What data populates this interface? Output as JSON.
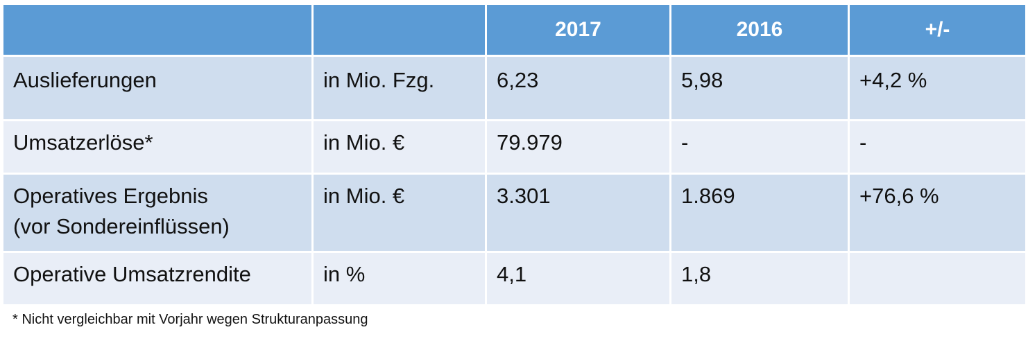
{
  "table": {
    "headers": [
      "",
      "",
      "2017",
      "2016",
      "+/-"
    ],
    "rows": [
      {
        "label_lines": [
          "Auslieferungen"
        ],
        "unit": "in Mio. Fzg.",
        "v2017": "6,23",
        "v2016": "5,98",
        "change": "+4,2 %"
      },
      {
        "label_lines": [
          "Umsatzerlöse*"
        ],
        "unit": "in Mio. €",
        "v2017": "79.979",
        "v2016": "-",
        "change": "-"
      },
      {
        "label_lines": [
          "Operatives Ergebnis",
          "(vor Sondereinflüssen)"
        ],
        "unit": "in Mio. €",
        "v2017": "3.301",
        "v2016": "1.869",
        "change": "+76,6 %"
      },
      {
        "label_lines": [
          "Operative Umsatzrendite"
        ],
        "unit": "in %",
        "v2017": "4,1",
        "v2016": "1,8",
        "change": ""
      }
    ]
  },
  "footnote": "* Nicht vergleichbar mit Vorjahr wegen Strukturanpassung",
  "colors": {
    "header_bg": "#5b9bd5",
    "row_dark": "#cfddee",
    "row_light": "#e9eef7"
  }
}
